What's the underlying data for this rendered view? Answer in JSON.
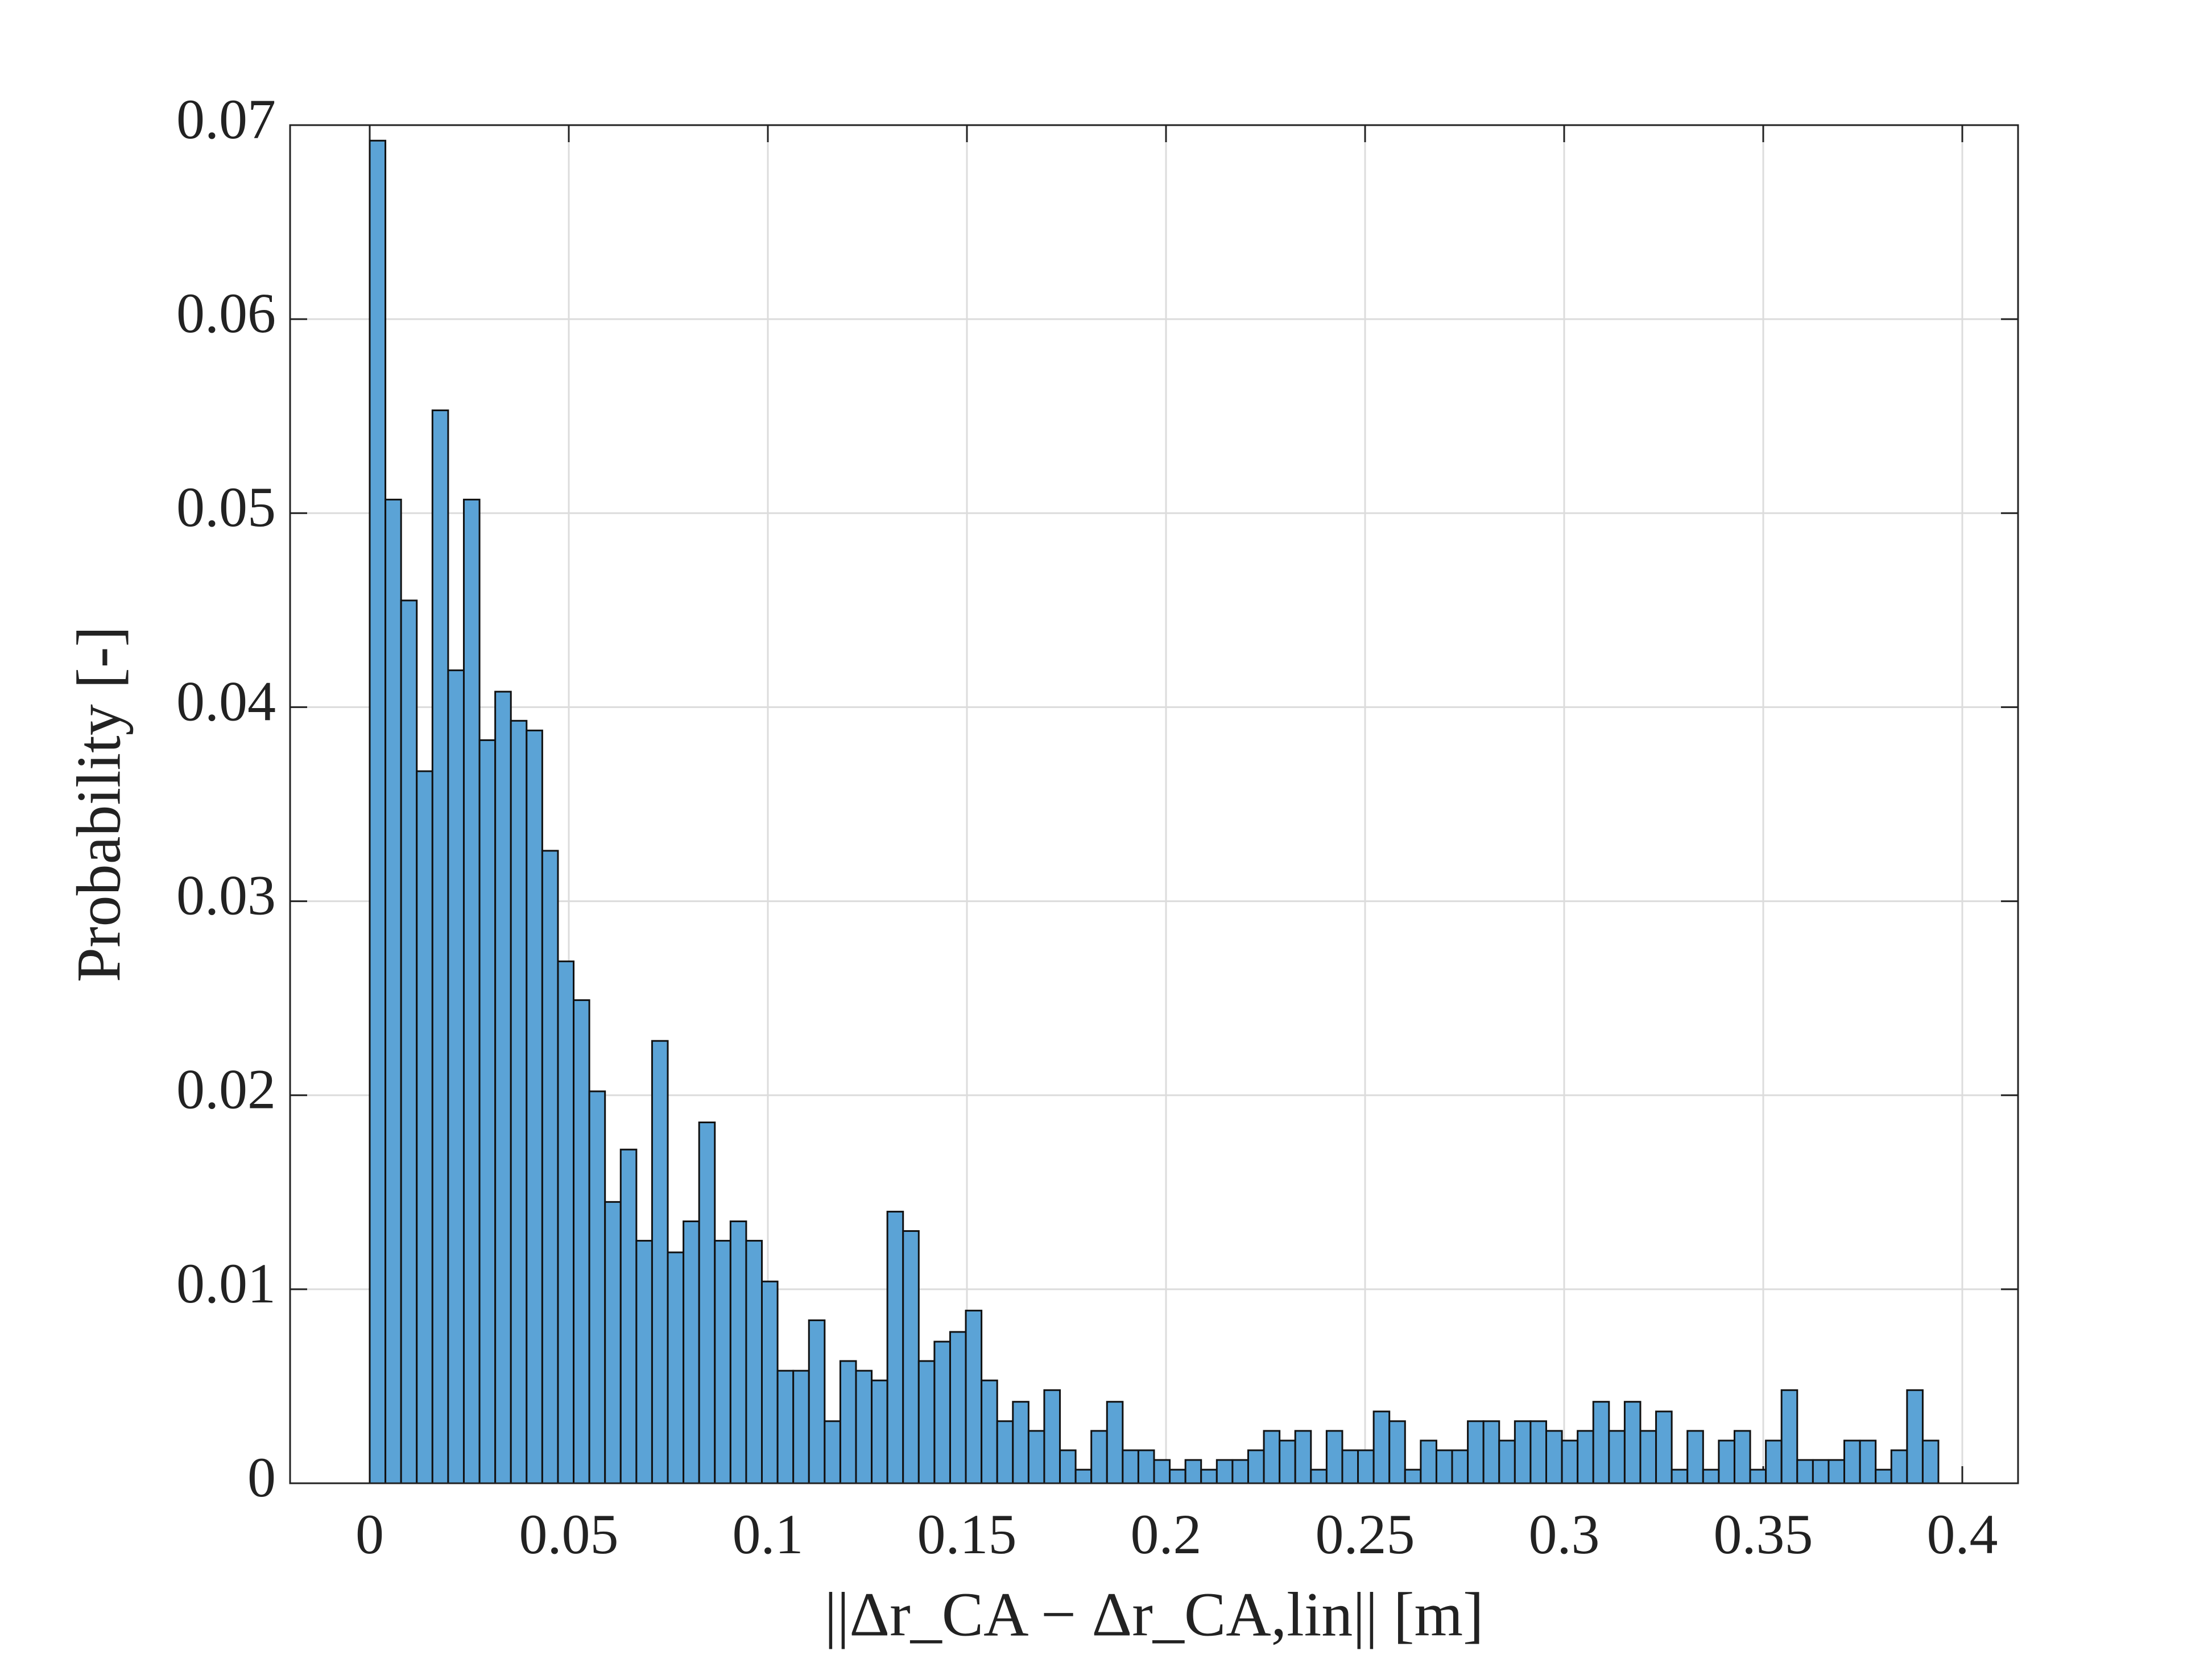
{
  "chart_data": {
    "type": "histogram",
    "xlabel": "||Δr_CA − Δr_CA,lin|| [m]",
    "ylabel": "Probability [-]",
    "bins": [
      0,
      0.00394,
      0.00788,
      0.01182,
      0.01576,
      0.0197,
      0.02364,
      0.02758,
      0.03152,
      0.03546,
      0.0394,
      0.04334,
      0.04728,
      0.05122,
      0.05516,
      0.0591,
      0.06304,
      0.06698,
      0.07092,
      0.07486,
      0.0788,
      0.08274,
      0.08668,
      0.09062,
      0.09456,
      0.0985,
      0.10244,
      0.10638,
      0.11032,
      0.11426,
      0.1182,
      0.12214,
      0.12608,
      0.13002,
      0.13396,
      0.1379,
      0.14184,
      0.14578,
      0.14972,
      0.15366,
      0.1576,
      0.16154,
      0.16548,
      0.16942,
      0.17336,
      0.1773,
      0.18124,
      0.18518,
      0.18912,
      0.19306,
      0.197,
      0.20094,
      0.20488,
      0.20882,
      0.21276,
      0.2167,
      0.22064,
      0.22458,
      0.22852,
      0.23246,
      0.2364,
      0.24034,
      0.24428,
      0.24822,
      0.25216,
      0.2561,
      0.26004,
      0.26398,
      0.26792,
      0.27186,
      0.2758,
      0.27974,
      0.28368,
      0.28762,
      0.29156,
      0.2955,
      0.29944,
      0.30338,
      0.30732,
      0.31126,
      0.3152,
      0.31914,
      0.32308,
      0.32702,
      0.33096,
      0.3349,
      0.33884,
      0.34278,
      0.34672,
      0.35066,
      0.3546,
      0.35854,
      0.36248,
      0.36642,
      0.37036,
      0.3743,
      0.37824,
      0.38218,
      0.38612,
      0.39006,
      0.394
    ],
    "values": [
      0.0692,
      0.0507,
      0.0455,
      0.0367,
      0.0553,
      0.0419,
      0.0507,
      0.0383,
      0.0408,
      0.0393,
      0.0388,
      0.0326,
      0.0269,
      0.0249,
      0.0202,
      0.0145,
      0.0172,
      0.0125,
      0.0228,
      0.0119,
      0.0135,
      0.0186,
      0.0125,
      0.0135,
      0.0125,
      0.0104,
      0.0058,
      0.0058,
      0.0084,
      0.0032,
      0.0063,
      0.0058,
      0.0053,
      0.014,
      0.013,
      0.0063,
      0.0073,
      0.0078,
      0.0089,
      0.0053,
      0.0032,
      0.0042,
      0.0027,
      0.0048,
      0.0017,
      0.0007,
      0.0027,
      0.0042,
      0.0017,
      0.0017,
      0.0012,
      0.0007,
      0.0012,
      0.0007,
      0.0012,
      0.0012,
      0.0017,
      0.0027,
      0.0022,
      0.0027,
      0.0007,
      0.0027,
      0.0017,
      0.0017,
      0.0037,
      0.0032,
      0.0007,
      0.0022,
      0.0017,
      0.0017,
      0.0032,
      0.0032,
      0.0022,
      0.0032,
      0.0032,
      0.0027,
      0.0022,
      0.0027,
      0.0042,
      0.0027,
      0.0042,
      0.0027,
      0.0037,
      0.0007,
      0.0027,
      0.0007,
      0.0022,
      0.0027,
      0.0007,
      0.0022,
      0.0048,
      0.0012,
      0.0012,
      0.0012,
      0.0022,
      0.0022,
      0.0007,
      0.0017,
      0.0048,
      0.0022
    ],
    "color": "#5ba3d6",
    "xlim": [
      -0.02,
      0.414
    ],
    "ylim": [
      0,
      0.07
    ],
    "xticks": [
      0,
      0.05,
      0.1,
      0.15,
      0.2,
      0.25,
      0.3,
      0.35,
      0.4
    ],
    "yticks": [
      0,
      0.01,
      0.02,
      0.03,
      0.04,
      0.05,
      0.06,
      0.07
    ],
    "grid": true
  }
}
